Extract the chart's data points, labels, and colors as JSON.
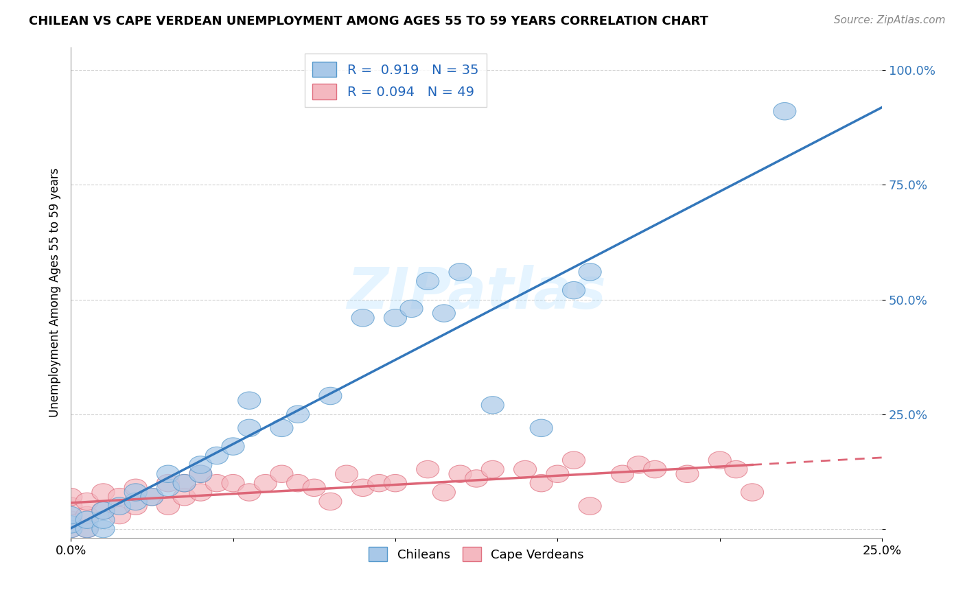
{
  "title": "CHILEAN VS CAPE VERDEAN UNEMPLOYMENT AMONG AGES 55 TO 59 YEARS CORRELATION CHART",
  "source": "Source: ZipAtlas.com",
  "ylabel": "Unemployment Among Ages 55 to 59 years",
  "xlim": [
    0.0,
    0.25
  ],
  "ylim": [
    -0.02,
    1.05
  ],
  "chilean_color": "#a8c8e8",
  "cape_verdean_color": "#f4b8c0",
  "chilean_edge_color": "#5599cc",
  "cape_verdean_edge_color": "#e07080",
  "chilean_line_color": "#3377bb",
  "cape_verdean_line_color": "#dd6677",
  "R_chilean": 0.919,
  "N_chilean": 35,
  "R_cape_verdean": 0.094,
  "N_cape_verdean": 49,
  "chilean_x": [
    0.0,
    0.0,
    0.0,
    0.005,
    0.005,
    0.01,
    0.01,
    0.01,
    0.015,
    0.02,
    0.02,
    0.025,
    0.03,
    0.03,
    0.035,
    0.04,
    0.04,
    0.045,
    0.05,
    0.055,
    0.055,
    0.065,
    0.07,
    0.08,
    0.09,
    0.1,
    0.105,
    0.11,
    0.115,
    0.12,
    0.13,
    0.145,
    0.155,
    0.16,
    0.22
  ],
  "chilean_y": [
    0.0,
    0.01,
    0.03,
    0.0,
    0.02,
    0.0,
    0.02,
    0.04,
    0.05,
    0.06,
    0.08,
    0.07,
    0.09,
    0.12,
    0.1,
    0.12,
    0.14,
    0.16,
    0.18,
    0.22,
    0.28,
    0.22,
    0.25,
    0.29,
    0.46,
    0.46,
    0.48,
    0.54,
    0.47,
    0.56,
    0.27,
    0.22,
    0.52,
    0.56,
    0.91
  ],
  "cape_verdean_x": [
    0.0,
    0.0,
    0.0,
    0.0,
    0.005,
    0.005,
    0.005,
    0.01,
    0.01,
    0.015,
    0.015,
    0.02,
    0.02,
    0.025,
    0.03,
    0.03,
    0.035,
    0.035,
    0.04,
    0.04,
    0.045,
    0.05,
    0.055,
    0.06,
    0.065,
    0.07,
    0.075,
    0.08,
    0.085,
    0.09,
    0.095,
    0.1,
    0.11,
    0.115,
    0.12,
    0.125,
    0.13,
    0.14,
    0.145,
    0.15,
    0.155,
    0.16,
    0.17,
    0.175,
    0.18,
    0.19,
    0.2,
    0.205,
    0.21
  ],
  "cape_verdean_y": [
    0.0,
    0.02,
    0.05,
    0.07,
    0.0,
    0.03,
    0.06,
    0.04,
    0.08,
    0.03,
    0.07,
    0.05,
    0.09,
    0.07,
    0.05,
    0.1,
    0.07,
    0.1,
    0.08,
    0.12,
    0.1,
    0.1,
    0.08,
    0.1,
    0.12,
    0.1,
    0.09,
    0.06,
    0.12,
    0.09,
    0.1,
    0.1,
    0.13,
    0.08,
    0.12,
    0.11,
    0.13,
    0.13,
    0.1,
    0.12,
    0.15,
    0.05,
    0.12,
    0.14,
    0.13,
    0.12,
    0.15,
    0.13,
    0.08
  ],
  "ytick_positions": [
    0.0,
    0.25,
    0.5,
    0.75,
    1.0
  ],
  "ytick_labels": [
    "",
    "25.0%",
    "50.0%",
    "75.0%",
    "100.0%"
  ],
  "xtick_positions": [
    0.0,
    0.05,
    0.1,
    0.15,
    0.2,
    0.25
  ],
  "xtick_labels": [
    "0.0%",
    "",
    "",
    "",
    "",
    "25.0%"
  ]
}
